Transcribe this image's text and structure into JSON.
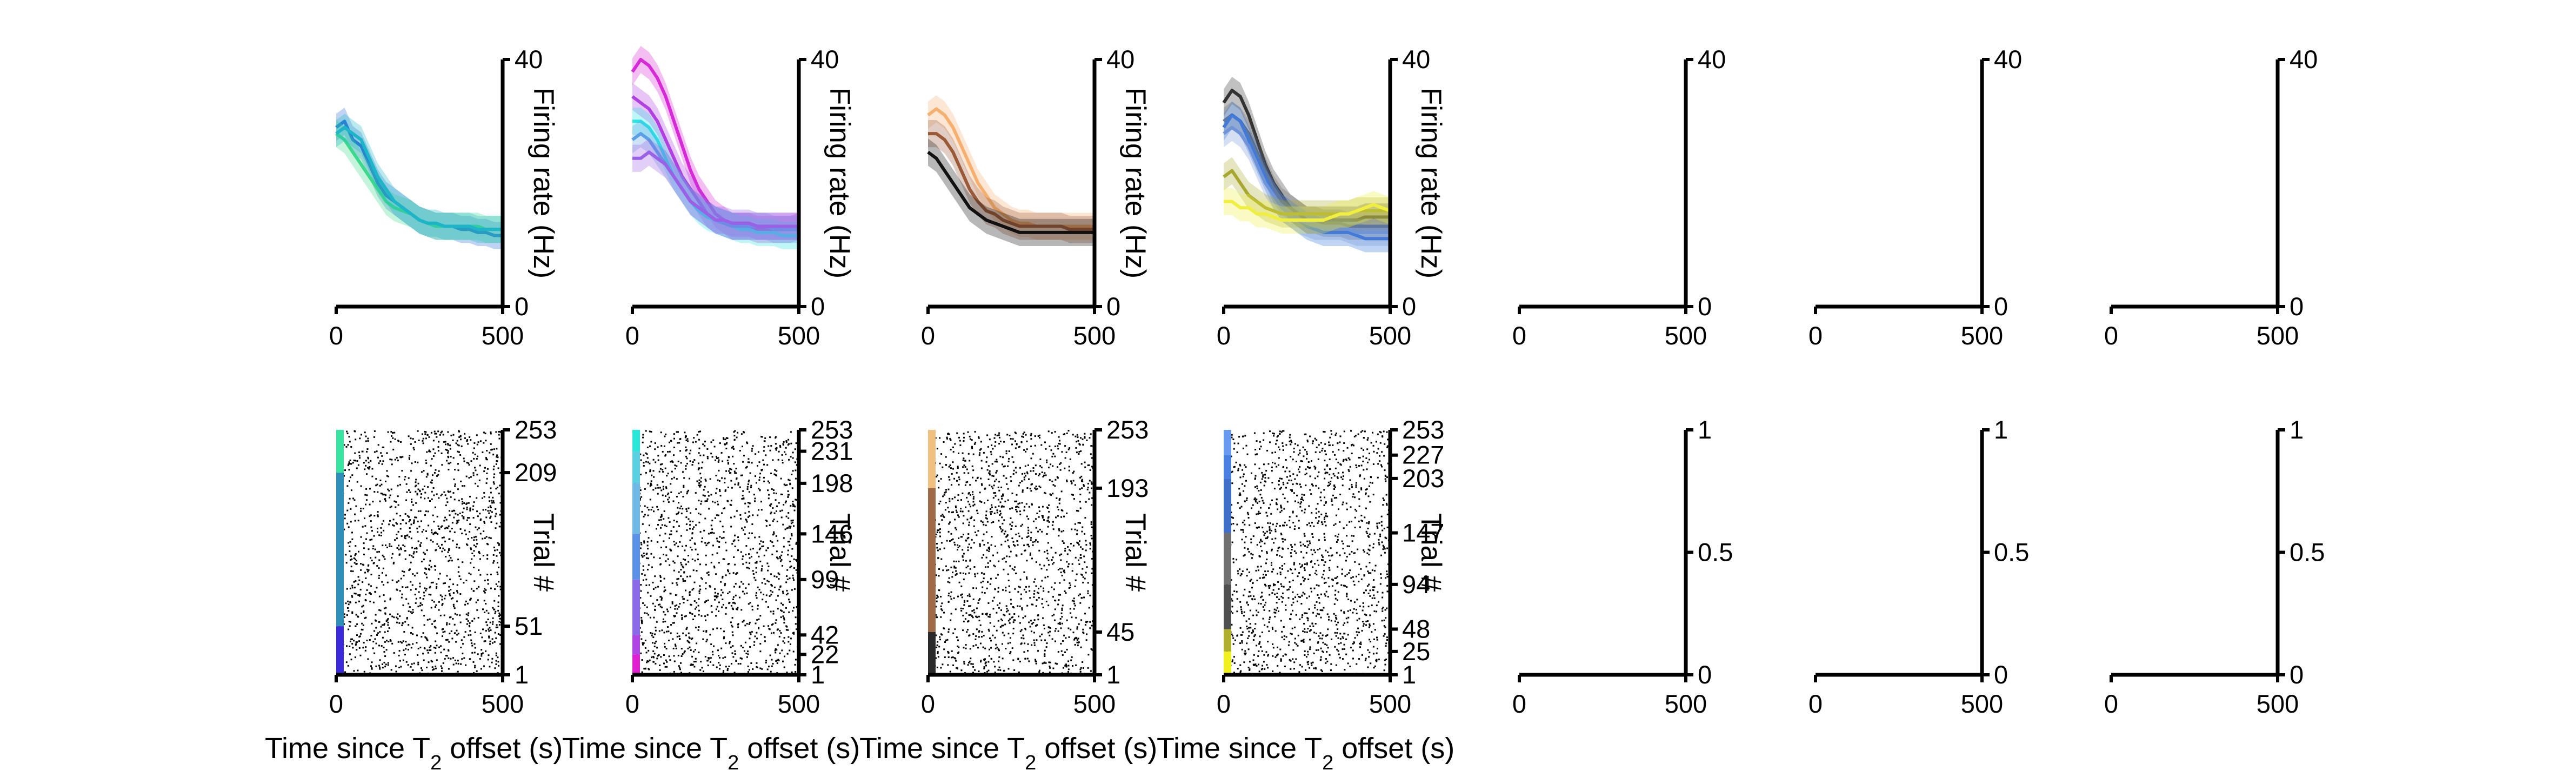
{
  "chart_data": {
    "type": "line",
    "x_title": "Time since T",
    "x_title_sub": "2",
    "x_title_tail": " offset (s)",
    "top_ylabel": "Firing rate (Hz)",
    "raster_ylabel": "Trial #",
    "x_range": [
      0,
      500
    ],
    "x_ticks": [
      "0",
      "500"
    ],
    "rate_ylim": [
      0,
      40
    ],
    "rate_ticks": [
      "0",
      "40"
    ],
    "empty_ylim": [
      0,
      1
    ],
    "empty_ticks": [
      "0",
      "0.5",
      "1"
    ],
    "rate_panels": [
      {
        "series": [
          {
            "color": "#2a6fd6",
            "x": [
              0,
              25,
              50,
              75,
              100,
              125,
              150,
              175,
              200,
              225,
              250,
              275,
              300,
              325,
              350,
              375,
              400,
              425,
              450,
              475,
              500
            ],
            "y": [
              29,
              30,
              27,
              26,
              23,
              20,
              18,
              17,
              16,
              15,
              14,
              13.5,
              13,
              13,
              13,
              12.5,
              12.5,
              12,
              12,
              11.5,
              11.5
            ]
          },
          {
            "color": "#3bd98c",
            "x": [
              0,
              25,
              50,
              75,
              100,
              125,
              150,
              175,
              200,
              225,
              250,
              275,
              300,
              325,
              350,
              375,
              400,
              425,
              450,
              475,
              500
            ],
            "y": [
              28,
              27,
              25,
              23,
              21,
              19,
              17,
              16,
              15.5,
              15,
              14,
              13.5,
              13,
              13,
              13,
              13,
              13,
              13,
              12.5,
              12.5,
              12.5
            ]
          },
          {
            "color": "#1fb5c8",
            "x": [
              0,
              25,
              50,
              75,
              100,
              125,
              150,
              175,
              200,
              225,
              250,
              275,
              300,
              325,
              350,
              375,
              400,
              425,
              450,
              475,
              500
            ],
            "y": [
              28,
              29,
              28,
              27,
              24,
              21,
              19,
              17,
              16,
              15,
              14,
              13.5,
              13.5,
              13,
              13,
              13,
              13,
              12.5,
              12.5,
              12.5,
              12.5
            ]
          }
        ]
      },
      {
        "series": [
          {
            "color": "#d62ad6",
            "x": [
              0,
              25,
              50,
              75,
              100,
              125,
              150,
              175,
              200,
              225,
              250,
              275,
              300,
              325,
              350,
              375,
              400,
              425,
              450,
              475,
              500
            ],
            "y": [
              38,
              40,
              39,
              37,
              34,
              30,
              26,
              22,
              19,
              17,
              15,
              14,
              13,
              13,
              13,
              12.5,
              12.5,
              12.5,
              12.5,
              12.5,
              13
            ]
          },
          {
            "color": "#b040e0",
            "x": [
              0,
              25,
              50,
              75,
              100,
              125,
              150,
              175,
              200,
              225,
              250,
              275,
              300,
              325,
              350,
              375,
              400,
              425,
              450,
              475,
              500
            ],
            "y": [
              34,
              33,
              32,
              30,
              27,
              24,
              21,
              19,
              17,
              15,
              14,
              13.5,
              13,
              13,
              13,
              13,
              13,
              13,
              13,
              13,
              13
            ]
          },
          {
            "color": "#2ae6e6",
            "x": [
              0,
              25,
              50,
              75,
              100,
              125,
              150,
              175,
              200,
              225,
              250,
              275,
              300,
              325,
              350,
              375,
              400,
              425,
              450,
              475,
              500
            ],
            "y": [
              30,
              30,
              29,
              27,
              24,
              21,
              19,
              17,
              15.5,
              14.5,
              14,
              13.5,
              13,
              12.5,
              12.5,
              12,
              12,
              12,
              11.5,
              11.5,
              11.5
            ]
          },
          {
            "color": "#5aa0e6",
            "x": [
              0,
              25,
              50,
              75,
              100,
              125,
              150,
              175,
              200,
              225,
              250,
              275,
              300,
              325,
              350,
              375,
              400,
              425,
              450,
              475,
              500
            ],
            "y": [
              27,
              28,
              27,
              25,
              23,
              21,
              19,
              17,
              16,
              15,
              14,
              13.5,
              13,
              13,
              13,
              13,
              13,
              12.5,
              12.5,
              12.5,
              12.5
            ]
          },
          {
            "color": "#9a60e6",
            "x": [
              0,
              25,
              50,
              75,
              100,
              125,
              150,
              175,
              200,
              225,
              250,
              275,
              300,
              325,
              350,
              375,
              400,
              425,
              450,
              475,
              500
            ],
            "y": [
              24,
              24,
              25,
              24,
              23,
              21,
              19,
              17,
              16,
              15,
              14,
              14,
              13.5,
              13.5,
              13.5,
              13,
              13,
              13,
              13,
              13,
              13
            ]
          }
        ]
      },
      {
        "series": [
          {
            "color": "#f5b070",
            "x": [
              0,
              25,
              50,
              75,
              100,
              125,
              150,
              175,
              200,
              225,
              250,
              275,
              300,
              325,
              350,
              375,
              400,
              425,
              450,
              475,
              500
            ],
            "y": [
              31,
              32,
              31,
              29,
              26,
              23,
              20,
              18,
              16,
              15,
              14,
              13.5,
              13.5,
              13,
              13,
              13,
              13,
              13,
              13,
              13,
              13
            ]
          },
          {
            "color": "#9a5a38",
            "x": [
              0,
              25,
              50,
              75,
              100,
              125,
              150,
              175,
              200,
              225,
              250,
              275,
              300,
              325,
              350,
              375,
              400,
              425,
              450,
              475,
              500
            ],
            "y": [
              28,
              28,
              27,
              25,
              22,
              19,
              17,
              15.5,
              15,
              14,
              13.5,
              13,
              13,
              13,
              13,
              13,
              13,
              12.5,
              12.5,
              12.5,
              12.5
            ]
          },
          {
            "color": "#111111",
            "x": [
              0,
              25,
              50,
              75,
              100,
              125,
              150,
              175,
              200,
              225,
              250,
              275,
              300,
              325,
              350,
              375,
              400,
              425,
              450,
              475,
              500
            ],
            "y": [
              25,
              24,
              22,
              20,
              18,
              16,
              15,
              14,
              13.5,
              13,
              12.5,
              12,
              12,
              12,
              12,
              12,
              12,
              12,
              12,
              12,
              12
            ]
          }
        ]
      },
      {
        "series": [
          {
            "color": "#333333",
            "x": [
              0,
              25,
              50,
              75,
              100,
              125,
              150,
              175,
              200,
              225,
              250,
              275,
              300,
              325,
              350,
              375,
              400,
              425,
              450,
              475,
              500
            ],
            "y": [
              33,
              35,
              34,
              31,
              27,
              23,
              20,
              18,
              16,
              15,
              14,
              14,
              14,
              14,
              14,
              14,
              14,
              14.5,
              14.5,
              14.5,
              14.5
            ]
          },
          {
            "color": "#6a6a6a",
            "x": [
              0,
              25,
              50,
              75,
              100,
              125,
              150,
              175,
              200,
              225,
              250,
              275,
              300,
              325,
              350,
              375,
              400,
              425,
              450,
              475,
              500
            ],
            "y": [
              30,
              31,
              30,
              28,
              25,
              22,
              19,
              17,
              16,
              15,
              14,
              14,
              13.5,
              13.5,
              13.5,
              13,
              13,
              13,
              13,
              13,
              13
            ]
          },
          {
            "color": "#2f6fd6",
            "x": [
              0,
              25,
              50,
              75,
              100,
              125,
              150,
              175,
              200,
              225,
              250,
              275,
              300,
              325,
              350,
              375,
              400,
              425,
              450,
              475,
              500
            ],
            "y": [
              29,
              31,
              30,
              27,
              24,
              21,
              18,
              16,
              15,
              14,
              13,
              12.5,
              12,
              12,
              12,
              12,
              11.5,
              11,
              11,
              11,
              11
            ]
          },
          {
            "color": "#6f94d8",
            "x": [
              0,
              25,
              50,
              75,
              100,
              125,
              150,
              175,
              200,
              225,
              250,
              275,
              300,
              325,
              350,
              375,
              400,
              425,
              450,
              475,
              500
            ],
            "y": [
              28,
              29,
              28,
              26,
              23,
              20,
              18,
              16,
              15,
              14,
              13.5,
              13,
              13,
              13,
              13,
              12.5,
              12,
              12,
              12,
              12,
              12
            ]
          },
          {
            "color": "#a8a830",
            "x": [
              0,
              25,
              50,
              75,
              100,
              125,
              150,
              175,
              200,
              225,
              250,
              275,
              300,
              325,
              350,
              375,
              400,
              425,
              450,
              475,
              500
            ],
            "y": [
              21,
              22,
              20,
              18,
              17,
              16,
              15.5,
              15,
              15,
              15,
              15,
              15,
              15,
              15,
              15,
              15,
              15.5,
              15.5,
              15.5,
              15.5,
              15.5
            ]
          },
          {
            "color": "#f0ef40",
            "x": [
              0,
              25,
              50,
              75,
              100,
              125,
              150,
              175,
              200,
              225,
              250,
              275,
              300,
              325,
              350,
              375,
              400,
              425,
              450,
              475,
              500
            ],
            "y": [
              17,
              17,
              16,
              16,
              15,
              15,
              14.5,
              14,
              14,
              14,
              14,
              14,
              14,
              14.5,
              15,
              15,
              15.5,
              16,
              16.5,
              16,
              15.5
            ]
          }
        ]
      }
    ],
    "raster_panels": [
      {
        "trial_ticks": [
          "1",
          "51",
          "209",
          "253"
        ],
        "groups": [
          {
            "color": "#3b2ad8",
            "from": 1,
            "to": 51
          },
          {
            "color": "#2f8fb8",
            "from": 51,
            "to": 209
          },
          {
            "color": "#3be3a0",
            "from": 209,
            "to": 253
          }
        ]
      },
      {
        "trial_ticks": [
          "1",
          "22",
          "42",
          "99",
          "146",
          "198",
          "231",
          "253"
        ],
        "groups": [
          {
            "color": "#e020d0",
            "from": 1,
            "to": 22
          },
          {
            "color": "#b045e6",
            "from": 22,
            "to": 42
          },
          {
            "color": "#8a6ae6",
            "from": 42,
            "to": 99
          },
          {
            "color": "#5a90e6",
            "from": 99,
            "to": 146
          },
          {
            "color": "#70b8e6",
            "from": 146,
            "to": 198
          },
          {
            "color": "#5ad0e0",
            "from": 198,
            "to": 231
          },
          {
            "color": "#2ae6d8",
            "from": 231,
            "to": 253
          }
        ]
      },
      {
        "trial_ticks": [
          "1",
          "45",
          "193",
          "253"
        ],
        "groups": [
          {
            "color": "#2a2a2a",
            "from": 1,
            "to": 45
          },
          {
            "color": "#a06a48",
            "from": 45,
            "to": 193
          },
          {
            "color": "#f0c080",
            "from": 193,
            "to": 253
          }
        ]
      },
      {
        "trial_ticks": [
          "1",
          "25",
          "48",
          "94",
          "147",
          "203",
          "227",
          "253"
        ],
        "groups": [
          {
            "color": "#f0f020",
            "from": 1,
            "to": 25
          },
          {
            "color": "#b0b030",
            "from": 25,
            "to": 48
          },
          {
            "color": "#505050",
            "from": 48,
            "to": 94
          },
          {
            "color": "#707070",
            "from": 94,
            "to": 147
          },
          {
            "color": "#3f6fc8",
            "from": 147,
            "to": 203
          },
          {
            "color": "#4a80e0",
            "from": 203,
            "to": 227
          },
          {
            "color": "#6a9af0",
            "from": 227,
            "to": 253
          }
        ]
      }
    ],
    "raster_trial_range": [
      1,
      253
    ],
    "empty_columns": 3
  }
}
